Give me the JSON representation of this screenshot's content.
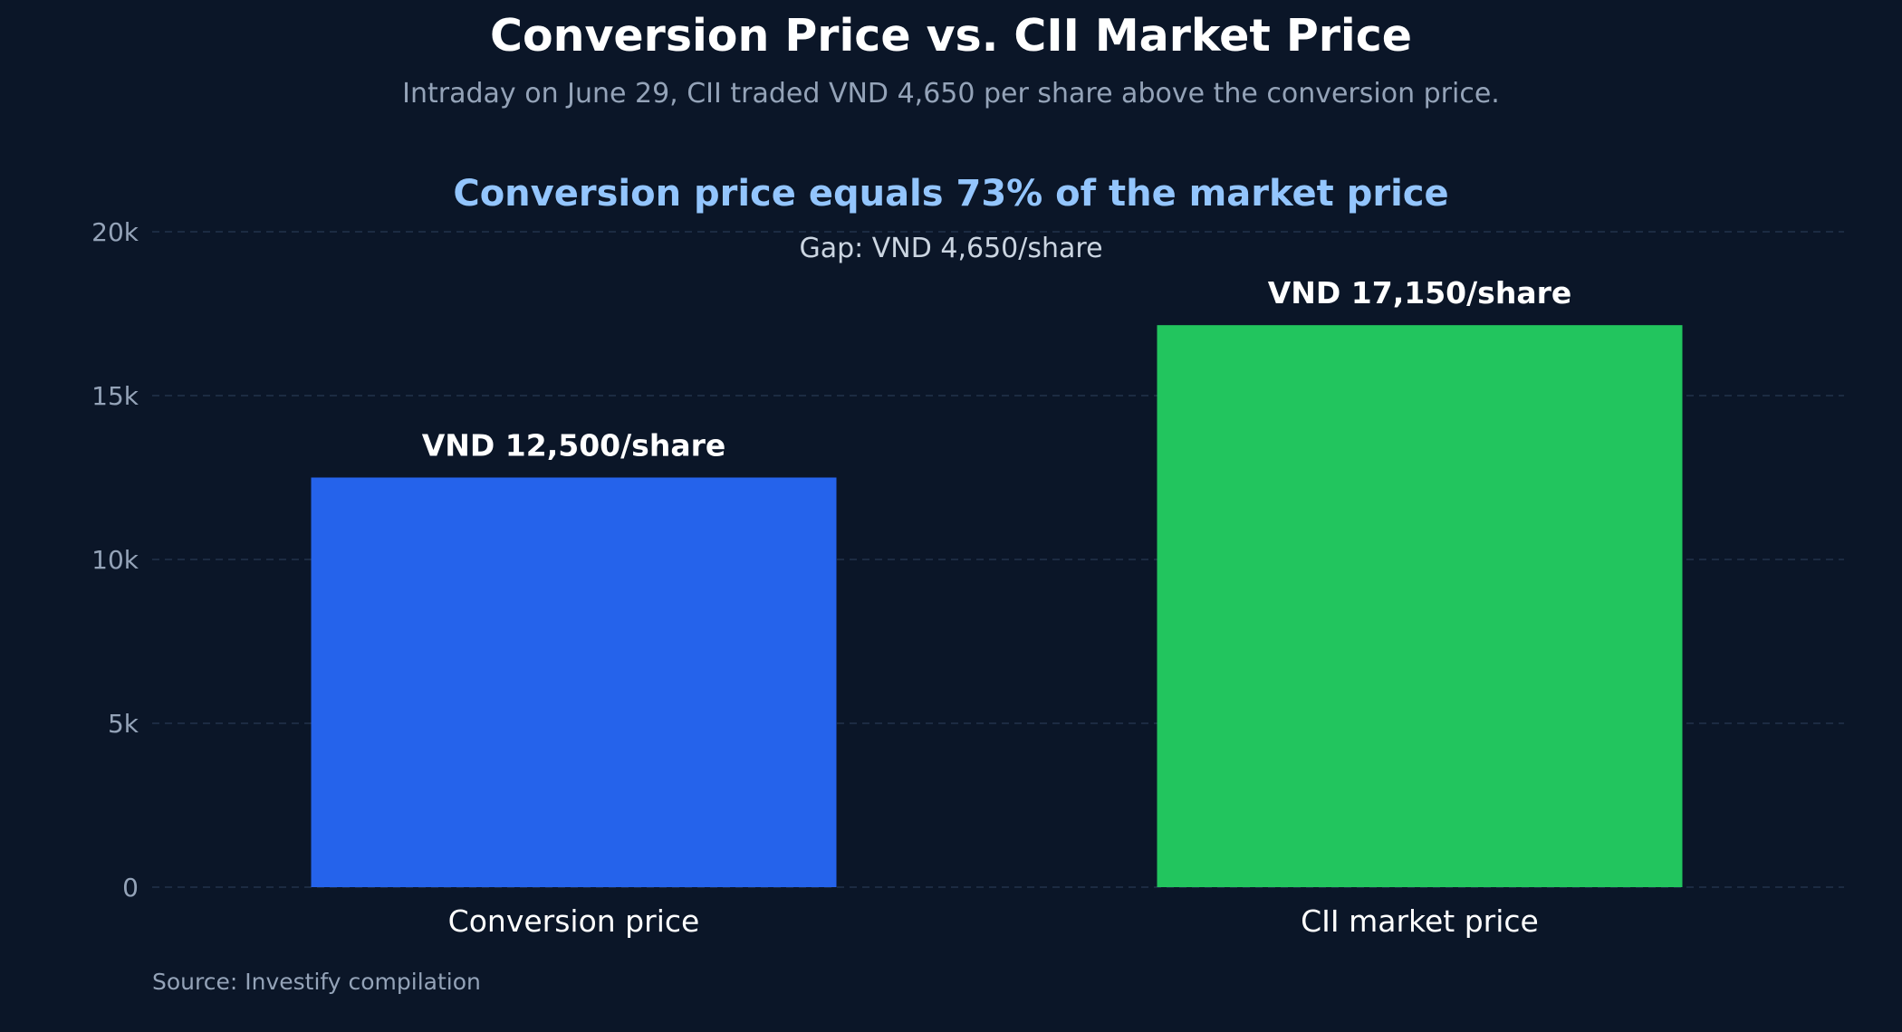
{
  "chart_data": {
    "type": "bar",
    "title": "Conversion Price vs. CII Market Price",
    "subtitle": "Intraday on June 29, CII traded VND 4,650 per share above the conversion price.",
    "annotation": {
      "title": "Conversion price equals 73% of the market price",
      "subtitle": "Gap: VND 4,650/share"
    },
    "categories": [
      "Conversion price",
      "CII market price"
    ],
    "values": [
      12500,
      17150
    ],
    "data_labels": [
      "VND 12,500/share",
      "VND 17,150/share"
    ],
    "bar_colors": [
      "#2563eb",
      "#22c55e"
    ],
    "annotation_color": "#93c5fd",
    "ylim": [
      0,
      20000
    ],
    "y_ticks": [
      0,
      5000,
      10000,
      15000,
      20000
    ],
    "y_tick_labels": [
      "0",
      "5k",
      "10k",
      "15k",
      "20k"
    ],
    "grid": true,
    "legend": "none",
    "source": "Source: Investify compilation"
  }
}
